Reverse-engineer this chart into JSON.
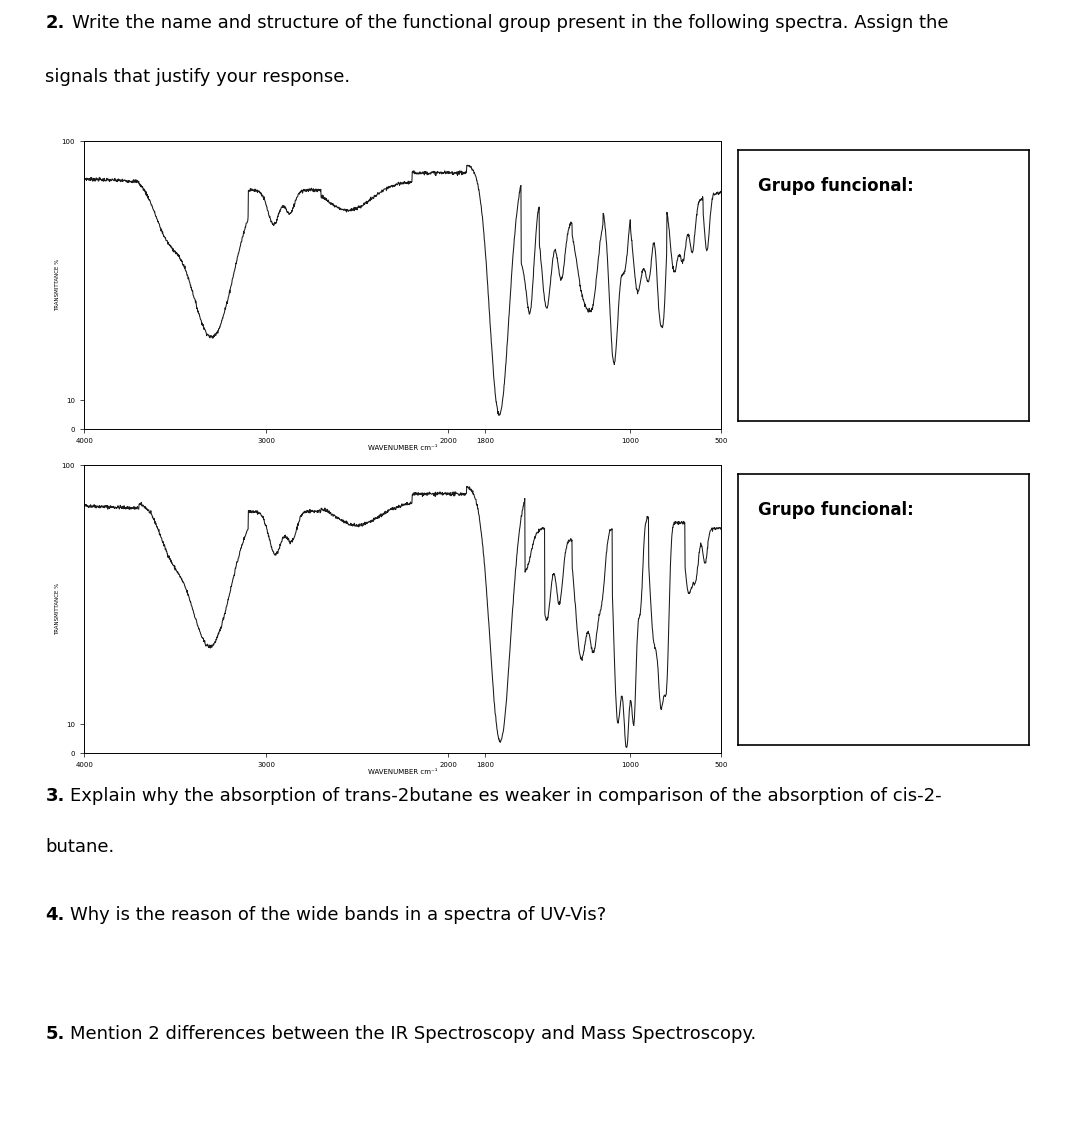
{
  "q2_bold": "2.",
  "q2_text1": " Write the name and structure of the functional group present in the following spectra. Assign the",
  "q2_text2": "signals that justify your response.",
  "q3_bold": "3.",
  "q3_text1": " Explain why the absorption of trans-2butane es weaker in comparison of the absorption of cis-2-",
  "q3_text2": "butane.",
  "q4_bold": "4.",
  "q4_text1": " Why is the reason of the wide bands in a spectra of UV-Vis?",
  "q5_bold": "5.",
  "q5_text1": " Mention 2 differences between the IR Spectroscopy and Mass Spectroscopy.",
  "grupo_funcional": "Grupo funcional:",
  "xlabel": "WAVENUMBER cm⁻¹",
  "ylabel": "TRANSMITTANCE %",
  "bg_color": "#ffffff",
  "line_color": "#1a1a1a",
  "text_color": "#000000",
  "fontsize_main": 13,
  "fontsize_small": 5.5
}
